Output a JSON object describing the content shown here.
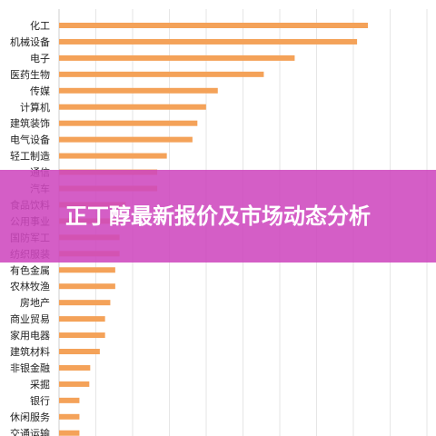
{
  "banner": {
    "title": "正丁醇最新报价及市场动态分析"
  },
  "colors": {
    "bar": "#f4a259",
    "grid": "#e6e6e6",
    "banner": "#ce48be"
  },
  "chart_data": {
    "type": "bar",
    "orientation": "horizontal",
    "title": "",
    "xlabel": "",
    "ylabel": "",
    "grid": true,
    "xlim": [
      0,
      100
    ],
    "categories": [
      "化工",
      "机械设备",
      "电子",
      "医药生物",
      "传媒",
      "计算机",
      "建筑装饰",
      "电气设备",
      "轻工制造",
      "通信",
      "汽车",
      "食品饮料",
      "公用事业",
      "国防军工",
      "纺织服装",
      "有色金属",
      "农林牧渔",
      "房地产",
      "商业贸易",
      "家用电器",
      "建筑材料",
      "非银金融",
      "采掘",
      "银行",
      "休闲服务",
      "交通运输"
    ],
    "values": [
      100,
      96.5,
      76.3,
      66.3,
      51.4,
      47.6,
      44.8,
      43.2,
      34.9,
      31.8,
      31.8,
      21.6,
      19.6,
      19.6,
      19.6,
      18.2,
      18.2,
      16.6,
      14.9,
      14.9,
      13.2,
      10.1,
      9.8,
      6.6,
      6.6,
      6.6
    ]
  }
}
